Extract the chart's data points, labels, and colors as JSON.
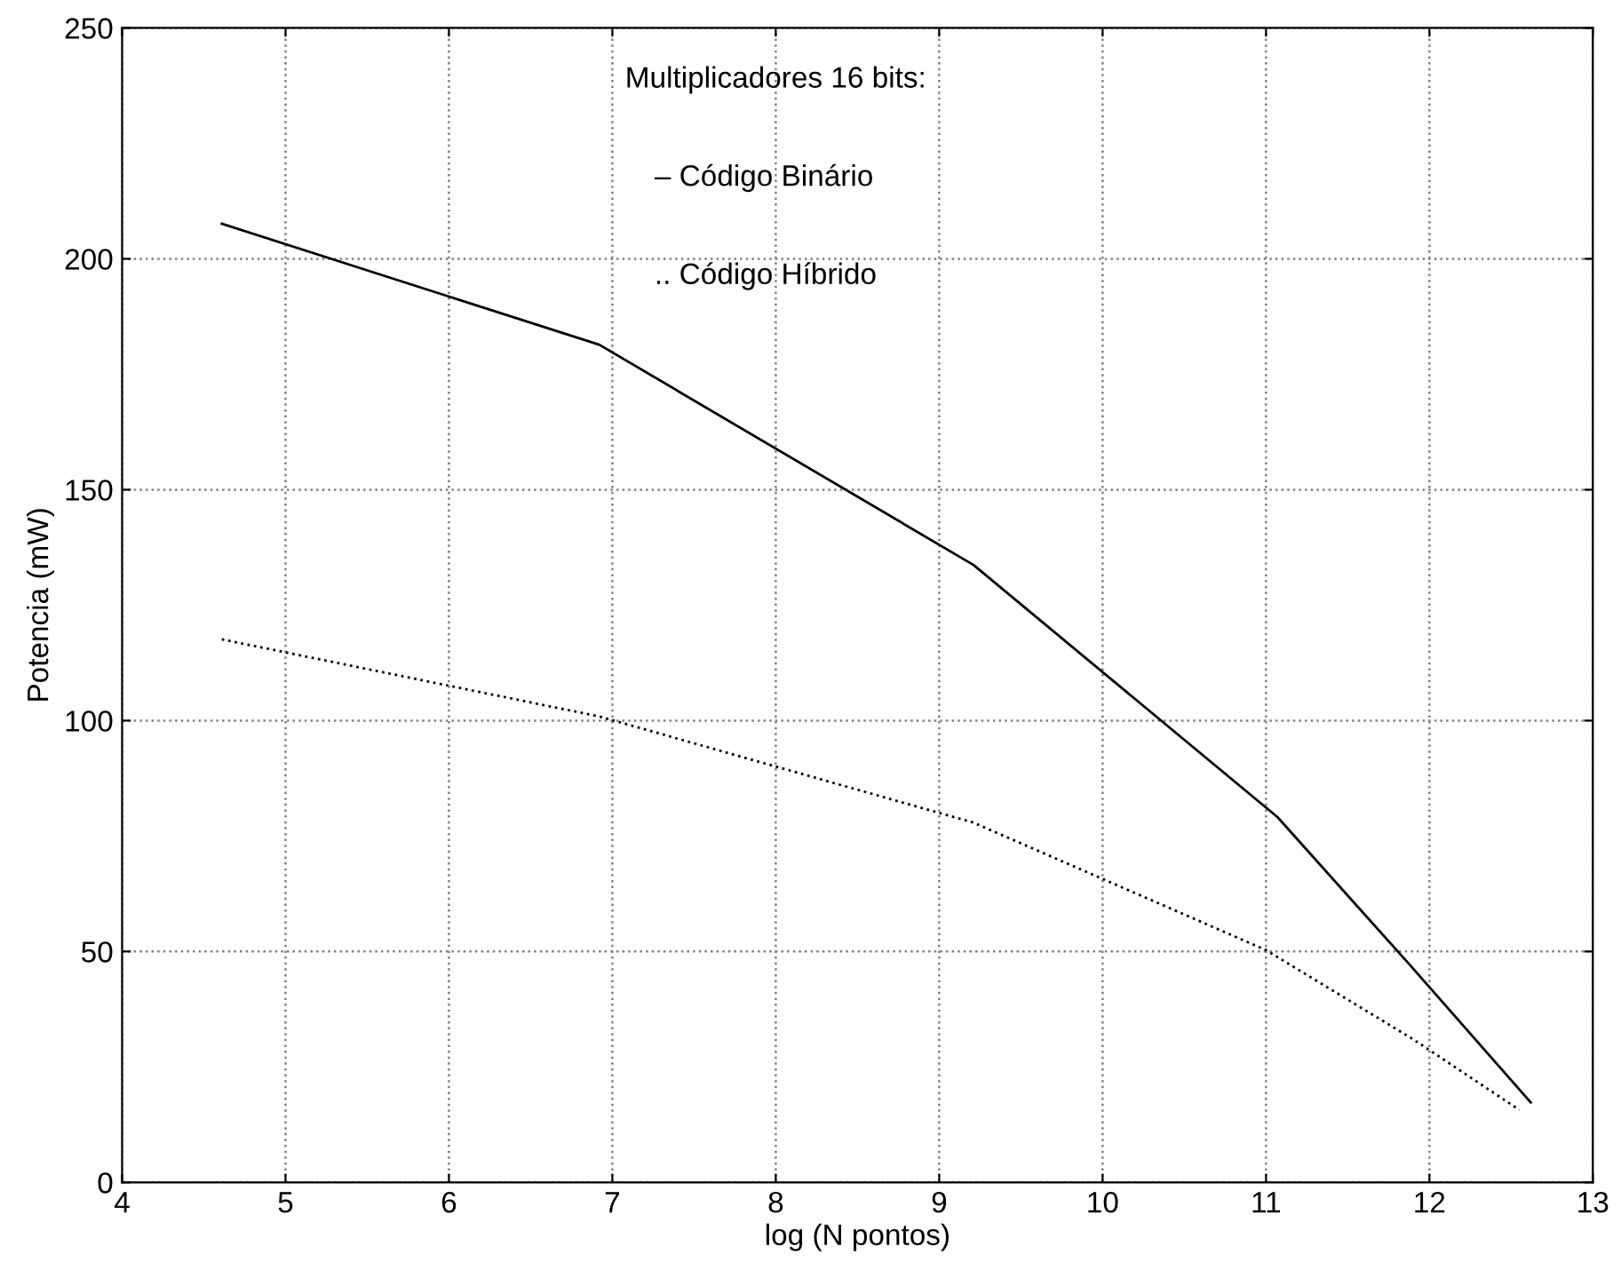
{
  "chart_data": {
    "type": "line",
    "xlabel": "log (N pontos)",
    "ylabel": "Potencia (mW)",
    "annotations": [
      "Multiplicadores 16 bits:",
      "– Código Binário",
      ".. Código Híbrido"
    ],
    "series": [
      {
        "color": "#000000",
        "line_style": "solid",
        "x": [
          4.61,
          6.92,
          9.21,
          11.07,
          11.88,
          12.62
        ],
        "values": [
          207.6,
          181.4,
          133.7,
          79.1,
          47.1,
          17.3
        ]
      },
      {
        "color": "#000000",
        "line_style": "dotted",
        "x": [
          4.61,
          6.92,
          9.21,
          11.0,
          11.9,
          12.55
        ],
        "values": [
          117.6,
          100.9,
          77.9,
          50.3,
          31,
          15.7
        ]
      }
    ],
    "xlim": [
      4,
      13
    ],
    "xticks": [
      4,
      5,
      6,
      7,
      8,
      9,
      10,
      11,
      12,
      13
    ],
    "ylim": [
      0,
      250
    ],
    "yticks": [
      0,
      50,
      100,
      150,
      200,
      250
    ],
    "grid": true,
    "marker": "none"
  }
}
